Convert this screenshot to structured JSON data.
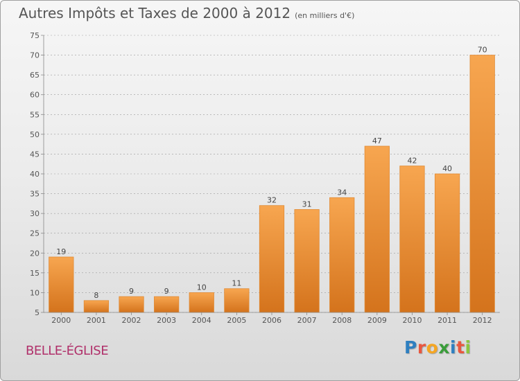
{
  "title": "Autres Impôts et Taxes de 2000 à 2012",
  "subtitle": "(en milliers d'€)",
  "commune": "BELLE-ÉGLISE",
  "logo": {
    "letters": [
      "P",
      "r",
      "o",
      "x",
      "i",
      "t",
      "i"
    ],
    "colors": [
      "#2e7fc0",
      "#e9573f",
      "#f5a623",
      "#3a9d3a",
      "#2e7fc0",
      "#e9573f",
      "#8cc63f"
    ]
  },
  "colors": {
    "bar_top": "#f7a650",
    "bar_bottom": "#d4731c",
    "bar_edge": "#e08a34",
    "text": "#555555",
    "grid": "#9a9a9a"
  },
  "chart_data": {
    "type": "bar",
    "categories": [
      "2000",
      "2001",
      "2002",
      "2003",
      "2004",
      "2005",
      "2006",
      "2007",
      "2008",
      "2009",
      "2010",
      "2011",
      "2012"
    ],
    "values": [
      19,
      8,
      9,
      9,
      10,
      11,
      32,
      31,
      34,
      47,
      42,
      40,
      70
    ],
    "ylim": [
      5,
      75
    ],
    "yticks": [
      5,
      10,
      15,
      20,
      25,
      30,
      35,
      40,
      45,
      50,
      55,
      60,
      65,
      70,
      75
    ],
    "grid": "horizontal dashed",
    "xlabel": "",
    "ylabel": ""
  }
}
